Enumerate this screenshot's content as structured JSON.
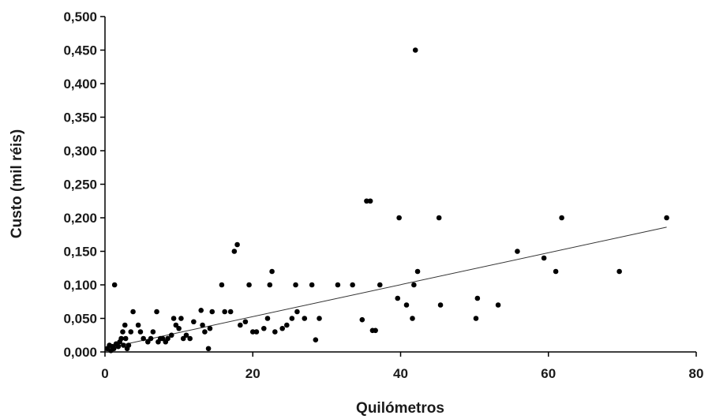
{
  "chart_data": {
    "type": "scatter",
    "xlabel": "Quilómetros",
    "ylabel": "Custo (mil réis)",
    "xlim": [
      0,
      80
    ],
    "ylim": [
      0,
      0.5
    ],
    "x_ticks": [
      0,
      20,
      40,
      60,
      80
    ],
    "x_tick_labels": [
      "0",
      "20",
      "40",
      "60",
      "80"
    ],
    "y_ticks": [
      0,
      0.05,
      0.1,
      0.15,
      0.2,
      0.25,
      0.3,
      0.35,
      0.4,
      0.45,
      0.5
    ],
    "y_tick_labels": [
      "0,000",
      "0,050",
      "0,100",
      "0,150",
      "0,200",
      "0,250",
      "0,300",
      "0,350",
      "0,400",
      "0,450",
      "0,500"
    ],
    "grid": false,
    "legend": "none",
    "trendline": {
      "x0": 0,
      "y0": 0.005,
      "x1": 76,
      "y1": 0.186
    },
    "points": [
      [
        0.3,
        0.005
      ],
      [
        0.6,
        0.01
      ],
      [
        0.8,
        0.002
      ],
      [
        1.0,
        0.008
      ],
      [
        1.2,
        0.005
      ],
      [
        1.5,
        0.012
      ],
      [
        1.8,
        0.008
      ],
      [
        2.0,
        0.015
      ],
      [
        2.2,
        0.02
      ],
      [
        2.5,
        0.01
      ],
      [
        2.8,
        0.02
      ],
      [
        3.0,
        0.005
      ],
      [
        3.2,
        0.01
      ],
      [
        2.4,
        0.03
      ],
      [
        2.7,
        0.04
      ],
      [
        3.5,
        0.03
      ],
      [
        1.3,
        0.1
      ],
      [
        3.8,
        0.06
      ],
      [
        4.5,
        0.04
      ],
      [
        4.8,
        0.03
      ],
      [
        5.2,
        0.02
      ],
      [
        5.8,
        0.015
      ],
      [
        6.2,
        0.02
      ],
      [
        6.5,
        0.03
      ],
      [
        7.0,
        0.06
      ],
      [
        7.2,
        0.015
      ],
      [
        7.5,
        0.02
      ],
      [
        7.8,
        0.02
      ],
      [
        8.2,
        0.015
      ],
      [
        8.5,
        0.02
      ],
      [
        9.0,
        0.025
      ],
      [
        9.3,
        0.05
      ],
      [
        9.6,
        0.04
      ],
      [
        10.0,
        0.035
      ],
      [
        10.3,
        0.05
      ],
      [
        10.6,
        0.02
      ],
      [
        11.0,
        0.025
      ],
      [
        11.5,
        0.02
      ],
      [
        12.0,
        0.045
      ],
      [
        13.0,
        0.062
      ],
      [
        13.2,
        0.04
      ],
      [
        13.5,
        0.03
      ],
      [
        14.0,
        0.005
      ],
      [
        14.2,
        0.035
      ],
      [
        14.5,
        0.06
      ],
      [
        15.8,
        0.1
      ],
      [
        16.2,
        0.06
      ],
      [
        17.0,
        0.06
      ],
      [
        17.5,
        0.15
      ],
      [
        17.9,
        0.16
      ],
      [
        18.3,
        0.04
      ],
      [
        19.0,
        0.045
      ],
      [
        19.5,
        0.1
      ],
      [
        20.0,
        0.03
      ],
      [
        20.5,
        0.03
      ],
      [
        21.5,
        0.035
      ],
      [
        22.0,
        0.05
      ],
      [
        22.3,
        0.1
      ],
      [
        22.6,
        0.12
      ],
      [
        23.0,
        0.03
      ],
      [
        24.0,
        0.035
      ],
      [
        24.6,
        0.04
      ],
      [
        25.3,
        0.05
      ],
      [
        25.8,
        0.1
      ],
      [
        26.0,
        0.06
      ],
      [
        27.0,
        0.05
      ],
      [
        28.0,
        0.1
      ],
      [
        28.5,
        0.018
      ],
      [
        29.0,
        0.05
      ],
      [
        31.5,
        0.1
      ],
      [
        33.5,
        0.1
      ],
      [
        34.8,
        0.048
      ],
      [
        35.4,
        0.225
      ],
      [
        35.9,
        0.225
      ],
      [
        36.2,
        0.032
      ],
      [
        36.6,
        0.032
      ],
      [
        37.2,
        0.1
      ],
      [
        39.6,
        0.08
      ],
      [
        39.8,
        0.2
      ],
      [
        40.8,
        0.07
      ],
      [
        41.6,
        0.05
      ],
      [
        41.8,
        0.1
      ],
      [
        42.0,
        0.45
      ],
      [
        42.3,
        0.12
      ],
      [
        45.2,
        0.2
      ],
      [
        45.4,
        0.07
      ],
      [
        50.2,
        0.05
      ],
      [
        50.4,
        0.08
      ],
      [
        53.2,
        0.07
      ],
      [
        55.8,
        0.15
      ],
      [
        59.4,
        0.14
      ],
      [
        61.0,
        0.12
      ],
      [
        61.8,
        0.2
      ],
      [
        69.6,
        0.12
      ],
      [
        76.0,
        0.2
      ]
    ]
  }
}
